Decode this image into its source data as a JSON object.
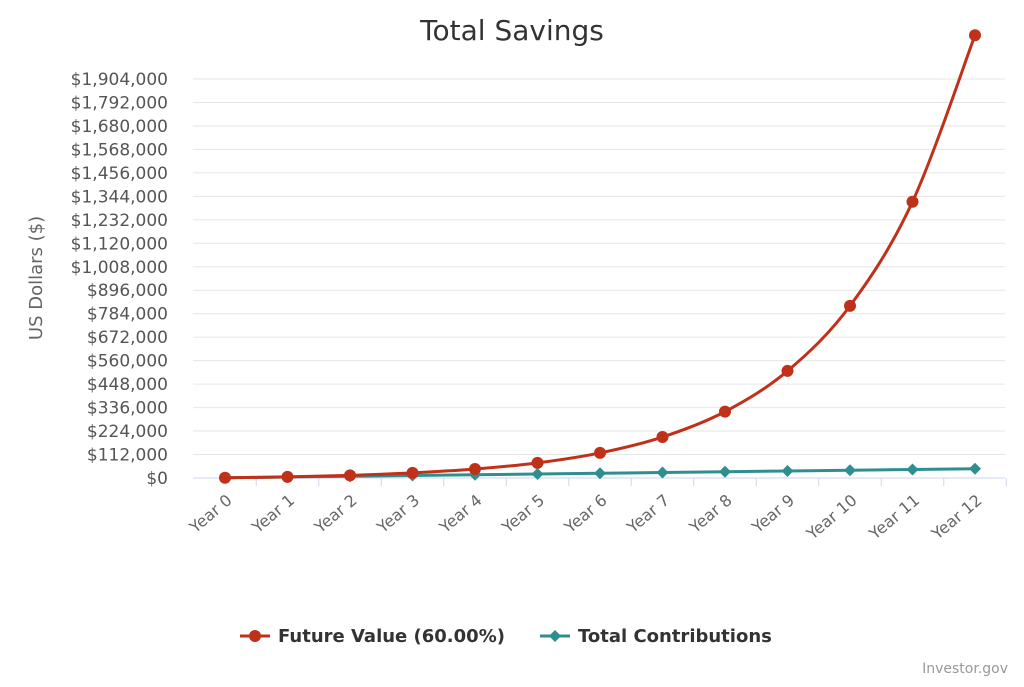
{
  "chart_data": {
    "type": "line",
    "title": "Total Savings",
    "ylabel": "US Dollars ($)",
    "xlabel": "",
    "categories": [
      "Year 0",
      "Year 1",
      "Year 2",
      "Year 3",
      "Year 4",
      "Year 5",
      "Year 6",
      "Year 7",
      "Year 8",
      "Year 9",
      "Year 10",
      "Year 11",
      "Year 12"
    ],
    "yticks": [
      "$0",
      "$112,000",
      "$224,000",
      "$336,000",
      "$448,000",
      "$560,000",
      "$672,000",
      "$784,000",
      "$896,000",
      "$1,008,000",
      "$1,120,000",
      "$1,232,000",
      "$1,344,000",
      "$1,456,000",
      "$1,568,000",
      "$1,680,000",
      "$1,792,000",
      "$1,904,000"
    ],
    "ylim": [
      0,
      1904000
    ],
    "grid": true,
    "legend_position": "bottom",
    "series": [
      {
        "name": "Future Value (60.00%)",
        "color": "#c0311a",
        "marker": "circle",
        "values": [
          1000,
          5400,
          12600,
          24200,
          42700,
          72300,
          119700,
          195500,
          316800,
          510900,
          821400,
          1318200,
          2113000
        ]
      },
      {
        "name": "Total Contributions",
        "color": "#2e8f90",
        "marker": "diamond",
        "values": [
          1000,
          4600,
          8200,
          11800,
          15400,
          19000,
          22600,
          26200,
          29800,
          33400,
          37000,
          40600,
          44200
        ]
      }
    ]
  },
  "credit": "Investor.gov"
}
